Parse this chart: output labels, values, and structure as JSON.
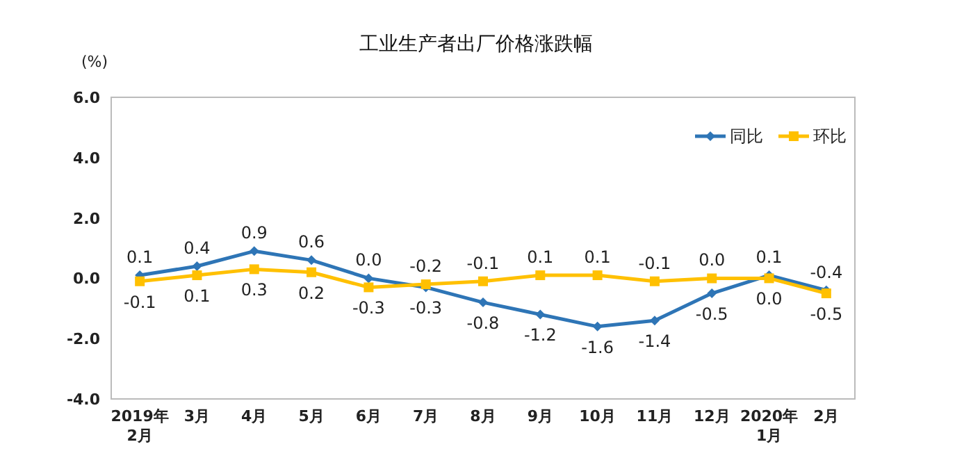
{
  "chart_data": {
    "type": "line",
    "title": "工业生产者出厂价格涨跌幅",
    "ylabel": "(%)",
    "categories": [
      "2019年\n2月",
      "3月",
      "4月",
      "5月",
      "6月",
      "7月",
      "8月",
      "9月",
      "10月",
      "11月",
      "12月",
      "2020年\n1月",
      "2月"
    ],
    "series": [
      {
        "name": "同比",
        "color": "#2e75b6",
        "marker": "diamond",
        "values": [
          0.1,
          0.4,
          0.9,
          0.6,
          0.0,
          -0.3,
          -0.8,
          -1.2,
          -1.6,
          -1.4,
          -0.5,
          0.1,
          -0.4
        ],
        "value_labels": [
          "0.1",
          "0.4",
          "0.9",
          "0.6",
          "0.0",
          "-0.3",
          "-0.8",
          "-1.2",
          "-1.6",
          "-1.4",
          "-0.5",
          "0.1",
          "-0.4"
        ]
      },
      {
        "name": "环比",
        "color": "#ffc000",
        "marker": "square",
        "values": [
          -0.1,
          0.1,
          0.3,
          0.2,
          -0.3,
          -0.2,
          -0.1,
          0.1,
          0.1,
          -0.1,
          0.0,
          0.0,
          -0.5
        ],
        "value_labels": [
          "-0.1",
          "0.1",
          "0.3",
          "0.2",
          "-0.3",
          "-0.2",
          "-0.1",
          "0.1",
          "0.1",
          "-0.1",
          "0.0",
          "0.0",
          "-0.5"
        ]
      }
    ],
    "ylim": [
      -4,
      6
    ],
    "yticks": [
      {
        "value": -4,
        "label": "-4.0"
      },
      {
        "value": -2,
        "label": "-2.0"
      },
      {
        "value": 0,
        "label": "0.0"
      },
      {
        "value": 2,
        "label": "2.0"
      },
      {
        "value": 4,
        "label": "4.0"
      },
      {
        "value": 6,
        "label": "6.0"
      }
    ],
    "grid": false,
    "legend": "top right"
  }
}
